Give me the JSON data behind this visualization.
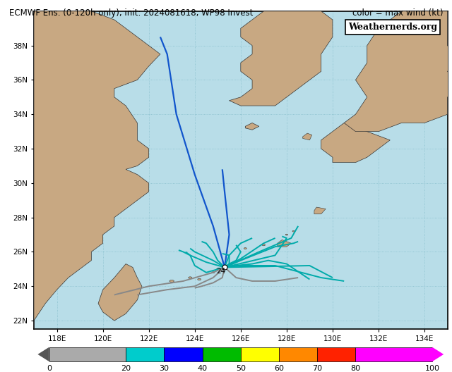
{
  "title_left": "ECMWF Ens. (0-120h only), init: 2024081618, WP98 Invest",
  "title_right": "color = max wind (kt)",
  "xlim": [
    117.0,
    135.0
  ],
  "ylim": [
    21.5,
    40.0
  ],
  "xticks": [
    118,
    120,
    122,
    124,
    126,
    128,
    130,
    132,
    134
  ],
  "yticks": [
    22,
    24,
    26,
    28,
    30,
    32,
    34,
    36,
    38
  ],
  "xlabel_labels": [
    "118E",
    "120E",
    "122E",
    "124E",
    "126E",
    "128E",
    "130E",
    "132E",
    "134E"
  ],
  "ylabel_labels": [
    "22N",
    "24N",
    "26N",
    "28N",
    "30N",
    "32N",
    "34N",
    "36N",
    "38N"
  ],
  "ocean_color": "#b8dde8",
  "land_color": "#c8a882",
  "grid_color": "#88bfcc",
  "waternerds_text": "Weathernerds.org",
  "colorbar_colors": [
    "#aaaaaa",
    "#00cccc",
    "#0000ff",
    "#00bb00",
    "#ffff00",
    "#ff8800",
    "#ff2200",
    "#ff00ff"
  ],
  "colorbar_boundaries": [
    0,
    20,
    30,
    40,
    50,
    60,
    70,
    80,
    100
  ],
  "colorbar_labels": [
    "0",
    "20",
    "30",
    "40",
    "50",
    "60",
    "70",
    "80",
    "100"
  ],
  "ensemble_tracks": [
    {
      "color": "#1155cc",
      "lw": 1.6,
      "points": [
        [
          125.3,
          25.1
        ],
        [
          124.8,
          27.5
        ],
        [
          124.0,
          30.5
        ],
        [
          123.2,
          34.0
        ],
        [
          122.8,
          37.5
        ],
        [
          122.5,
          38.5
        ]
      ]
    },
    {
      "color": "#1155cc",
      "lw": 1.6,
      "points": [
        [
          125.3,
          25.1
        ],
        [
          125.5,
          27.0
        ],
        [
          125.3,
          29.5
        ],
        [
          125.2,
          30.8
        ]
      ]
    },
    {
      "color": "#00aaaa",
      "lw": 1.4,
      "points": [
        [
          125.3,
          25.1
        ],
        [
          125.0,
          25.5
        ],
        [
          124.8,
          26.0
        ],
        [
          124.5,
          26.5
        ],
        [
          124.3,
          26.6
        ]
      ]
    },
    {
      "color": "#00aaaa",
      "lw": 1.4,
      "points": [
        [
          125.3,
          25.1
        ],
        [
          125.5,
          25.3
        ],
        [
          125.8,
          25.5
        ],
        [
          126.0,
          26.0
        ],
        [
          125.8,
          26.4
        ]
      ]
    },
    {
      "color": "#00aaaa",
      "lw": 1.4,
      "points": [
        [
          125.3,
          25.1
        ],
        [
          125.8,
          25.2
        ],
        [
          126.5,
          25.3
        ],
        [
          127.2,
          25.5
        ],
        [
          128.0,
          25.3
        ],
        [
          129.0,
          24.4
        ]
      ]
    },
    {
      "color": "#00aaaa",
      "lw": 1.4,
      "points": [
        [
          125.3,
          25.1
        ],
        [
          126.0,
          25.2
        ],
        [
          127.5,
          25.2
        ],
        [
          129.5,
          24.5
        ],
        [
          130.5,
          24.3
        ]
      ]
    },
    {
      "color": "#00aaaa",
      "lw": 1.4,
      "points": [
        [
          125.3,
          25.1
        ],
        [
          126.0,
          25.5
        ],
        [
          127.5,
          26.3
        ],
        [
          128.3,
          26.5
        ],
        [
          128.5,
          26.6
        ]
      ]
    },
    {
      "color": "#00aaaa",
      "lw": 1.4,
      "points": [
        [
          125.3,
          25.1
        ],
        [
          126.0,
          25.6
        ],
        [
          127.0,
          26.5
        ],
        [
          127.5,
          26.8
        ]
      ]
    },
    {
      "color": "#00aaaa",
      "lw": 1.4,
      "points": [
        [
          125.3,
          25.1
        ],
        [
          125.5,
          25.8
        ],
        [
          126.0,
          26.5
        ],
        [
          126.5,
          26.8
        ]
      ]
    },
    {
      "color": "#00aaaa",
      "lw": 1.4,
      "points": [
        [
          125.3,
          25.1
        ],
        [
          124.8,
          25.5
        ],
        [
          124.0,
          26.0
        ],
        [
          123.8,
          26.2
        ]
      ]
    },
    {
      "color": "#00aaaa",
      "lw": 1.4,
      "points": [
        [
          125.3,
          25.1
        ],
        [
          124.5,
          25.4
        ],
        [
          123.8,
          25.8
        ],
        [
          123.5,
          26.0
        ],
        [
          123.3,
          26.1
        ]
      ]
    },
    {
      "color": "#00aaaa",
      "lw": 1.4,
      "points": [
        [
          125.3,
          25.1
        ],
        [
          124.5,
          24.8
        ],
        [
          124.0,
          25.2
        ],
        [
          123.8,
          25.8
        ],
        [
          123.6,
          26.0
        ]
      ]
    },
    {
      "color": "#888888",
      "lw": 1.4,
      "points": [
        [
          125.3,
          25.1
        ],
        [
          124.8,
          24.8
        ],
        [
          123.5,
          24.3
        ],
        [
          122.0,
          24.0
        ],
        [
          120.5,
          23.5
        ]
      ]
    },
    {
      "color": "#888888",
      "lw": 1.4,
      "points": [
        [
          125.3,
          25.1
        ],
        [
          124.8,
          24.5
        ],
        [
          124.0,
          24.0
        ],
        [
          122.8,
          23.8
        ],
        [
          121.5,
          23.5
        ]
      ]
    },
    {
      "color": "#888888",
      "lw": 1.4,
      "points": [
        [
          125.3,
          25.1
        ],
        [
          125.2,
          24.5
        ],
        [
          124.8,
          24.2
        ],
        [
          124.3,
          24.0
        ],
        [
          124.0,
          23.9
        ]
      ]
    },
    {
      "color": "#888888",
      "lw": 1.4,
      "points": [
        [
          125.3,
          25.1
        ],
        [
          125.8,
          24.5
        ],
        [
          126.5,
          24.3
        ],
        [
          127.5,
          24.3
        ],
        [
          128.5,
          24.5
        ]
      ]
    },
    {
      "color": "#00aaaa",
      "lw": 1.4,
      "points": [
        [
          125.3,
          25.1
        ],
        [
          129.0,
          25.2
        ],
        [
          130.0,
          24.5
        ]
      ]
    },
    {
      "color": "#00aaaa",
      "lw": 1.4,
      "points": [
        [
          125.3,
          25.1
        ],
        [
          127.5,
          25.8
        ],
        [
          128.0,
          26.8
        ],
        [
          127.8,
          26.9
        ]
      ]
    },
    {
      "color": "#00aaaa",
      "lw": 1.4,
      "points": [
        [
          125.3,
          25.1
        ],
        [
          126.8,
          26.0
        ],
        [
          128.2,
          26.8
        ],
        [
          128.5,
          27.5
        ]
      ]
    },
    {
      "color": "#00aaaa",
      "lw": 1.4,
      "points": [
        [
          125.3,
          25.1
        ],
        [
          125.5,
          25.3
        ],
        [
          125.5,
          25.8
        ],
        [
          125.2,
          25.9
        ]
      ]
    }
  ],
  "start_marker": {
    "lon": 125.3,
    "lat": 25.1,
    "label": "24"
  },
  "figsize": [
    6.4,
    5.28
  ],
  "dpi": 100
}
